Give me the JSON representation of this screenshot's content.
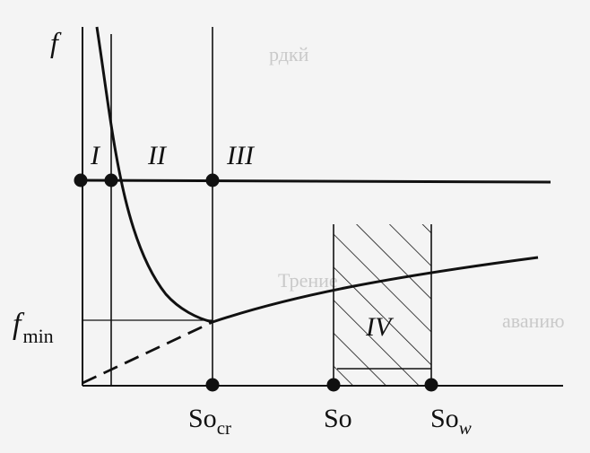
{
  "axis": {
    "y_label": "f",
    "y_min_label_main": "f",
    "y_min_label_sub": "min"
  },
  "regions": [
    "I",
    "II",
    "III",
    "IV"
  ],
  "x_marks": {
    "so_cr_main": "So",
    "so_cr_sub": "cr",
    "so": "So",
    "so_w_main": "So",
    "so_w_sub": "w"
  },
  "background_text": {
    "line_1": "рдкй",
    "line_2": "Трение",
    "line_3": "аванию"
  },
  "colors": {
    "background": "#f4f4f4",
    "ink": "#111111",
    "ghost": "#c9c9c9"
  }
}
